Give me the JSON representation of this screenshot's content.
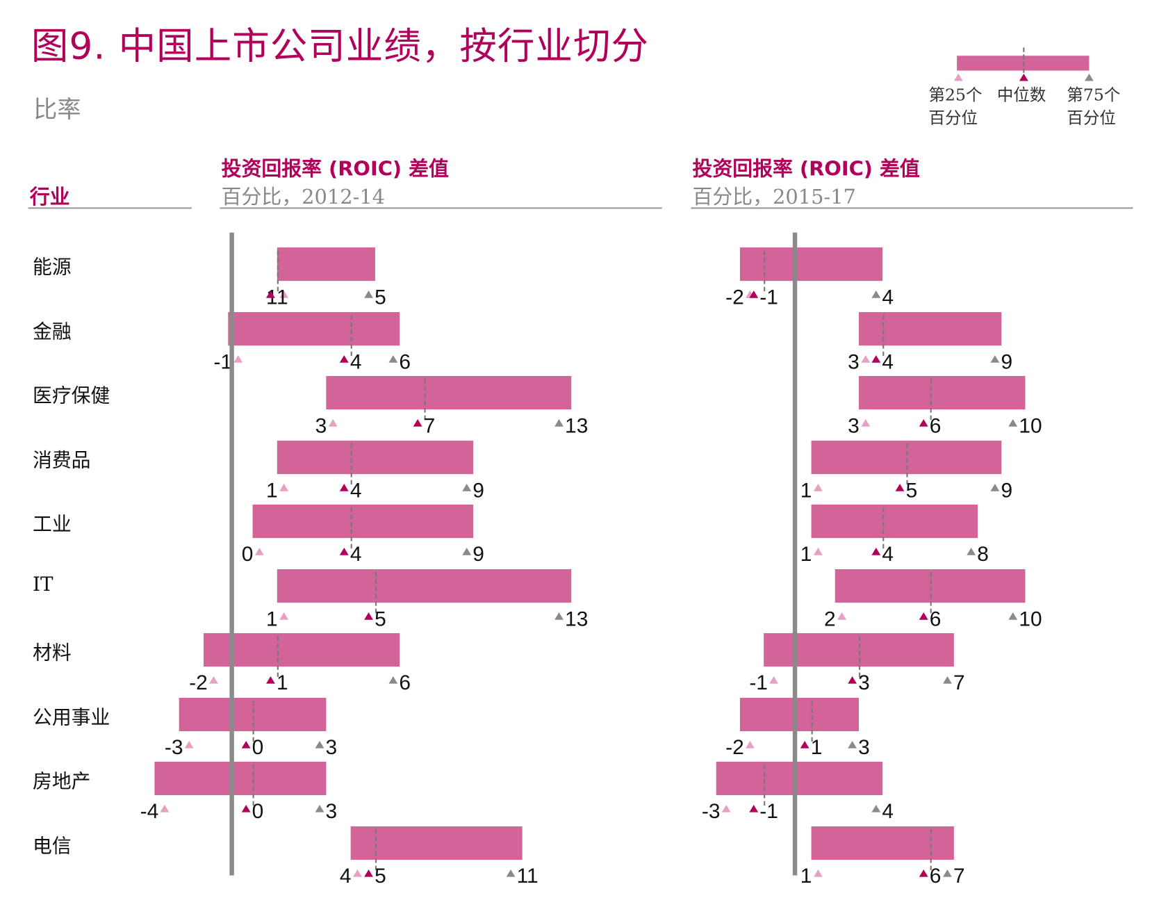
{
  "title": "图9. 中国上市公司业绩，按行业切分",
  "subtitle": "比率",
  "legend": {
    "p25_line1": "第25个",
    "p25_line2": "百分位",
    "median": "中位数",
    "p75_line1": "第75个",
    "p75_line2": "百分位"
  },
  "sector_header": "行业",
  "colors": {
    "accent": "#b0005a",
    "bar": "#d2649a",
    "p25_marker": "#e6a0c3",
    "median_marker": "#b0005a",
    "p75_marker": "#8a8a8a",
    "zero_line": "#8a8a8a"
  },
  "chart_data": [
    {
      "type": "range-bar",
      "title": "投资回报率 (ROIC) 差值",
      "subtitle": "百分比，2012-14",
      "categories": [
        "能源",
        "金融",
        "医疗保健",
        "消费品",
        "工业",
        "IT",
        "材料",
        "公用事业",
        "房地产",
        "电信"
      ],
      "p25": [
        1,
        -1,
        3,
        1,
        0,
        1,
        -2,
        -3,
        -4,
        4
      ],
      "median": [
        1,
        4,
        7,
        4,
        4,
        5,
        1,
        0,
        0,
        5
      ],
      "p75": [
        5,
        6,
        13,
        9,
        9,
        13,
        6,
        3,
        3,
        11
      ]
    },
    {
      "type": "range-bar",
      "title": "投资回报率 (ROIC) 差值",
      "subtitle": "百分比，2015-17",
      "categories": [
        "能源",
        "金融",
        "医疗保健",
        "消费品",
        "工业",
        "IT",
        "材料",
        "公用事业",
        "房地产",
        "电信"
      ],
      "p25": [
        -2,
        3,
        3,
        1,
        1,
        2,
        -1,
        -2,
        -3,
        1
      ],
      "median": [
        -1,
        4,
        6,
        5,
        4,
        6,
        3,
        1,
        -1,
        6
      ],
      "p75": [
        4,
        9,
        10,
        9,
        8,
        10,
        7,
        3,
        4,
        7
      ]
    }
  ]
}
